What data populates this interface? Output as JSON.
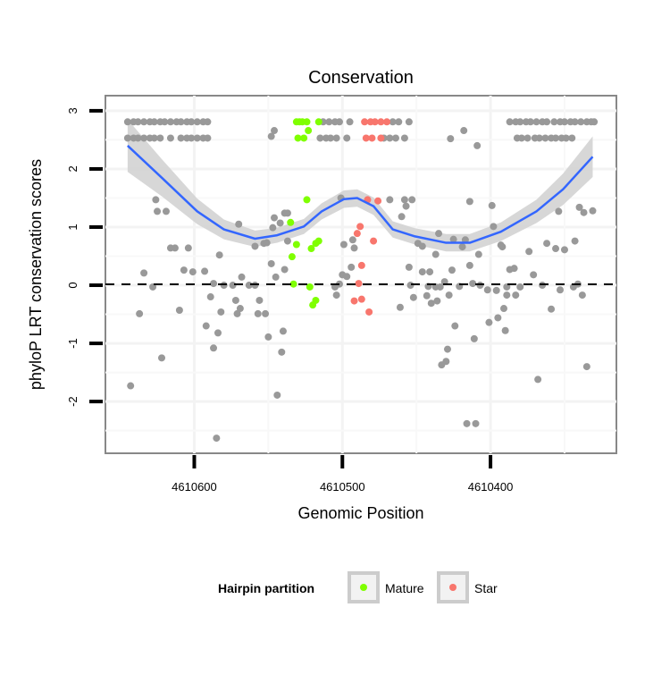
{
  "chart_data": {
    "type": "scatter",
    "title": "Conservation",
    "xlabel": "Genomic Position",
    "ylabel": "phyloP LRT conservation scores",
    "xlim": [
      4610660,
      4610315
    ],
    "x_reversed": true,
    "ylim": [
      -2.89,
      3.26
    ],
    "x_ticks": [
      4610600,
      4610500,
      4610400
    ],
    "x_tick_labels": [
      "4610600",
      "4610500",
      "4610400"
    ],
    "y_ticks": [
      3,
      2,
      1,
      0,
      -1,
      -2
    ],
    "y_tick_labels": [
      "3",
      "2",
      "1",
      "0",
      "-1",
      "-2"
    ],
    "grid": true,
    "reference_line": {
      "y": 0,
      "style": "dashed"
    },
    "legend": {
      "title": "Hairpin partition",
      "placement": "bottom",
      "entries": [
        {
          "label": "Mature",
          "color": "#7FFF00"
        },
        {
          "label": "Star",
          "color": "#F8766D"
        }
      ]
    },
    "colors": {
      "other": "#999999",
      "Mature": "#7FFF00",
      "Star": "#F8766D",
      "smooth": "#3366FF",
      "band": "#D3D3D3"
    },
    "series": [
      {
        "name": "Other",
        "points": [
          [
            4610645,
            2.81
          ],
          [
            4610641,
            2.81
          ],
          [
            4610638,
            2.81
          ],
          [
            4610634,
            2.81
          ],
          [
            4610630,
            2.81
          ],
          [
            4610627,
            2.81
          ],
          [
            4610623,
            2.81
          ],
          [
            4610620,
            2.81
          ],
          [
            4610616,
            2.81
          ],
          [
            4610612,
            2.81
          ],
          [
            4610609,
            2.81
          ],
          [
            4610605,
            2.81
          ],
          [
            4610602,
            2.81
          ],
          [
            4610598,
            2.81
          ],
          [
            4610594,
            2.81
          ],
          [
            4610591,
            2.81
          ],
          [
            4610645,
            2.53
          ],
          [
            4610641,
            2.53
          ],
          [
            4610638,
            2.53
          ],
          [
            4610634,
            2.53
          ],
          [
            4610630,
            2.53
          ],
          [
            4610627,
            2.53
          ],
          [
            4610623,
            2.53
          ],
          [
            4610616,
            2.53
          ],
          [
            4610609,
            2.53
          ],
          [
            4610605,
            2.53
          ],
          [
            4610602,
            2.53
          ],
          [
            4610598,
            2.53
          ],
          [
            4610594,
            2.53
          ],
          [
            4610591,
            2.53
          ],
          [
            4610513,
            2.81
          ],
          [
            4610509,
            2.81
          ],
          [
            4610505,
            2.81
          ],
          [
            4610502,
            2.81
          ],
          [
            4610495,
            2.81
          ],
          [
            4610515,
            2.53
          ],
          [
            4610511,
            2.53
          ],
          [
            4610508,
            2.53
          ],
          [
            4610504,
            2.53
          ],
          [
            4610497,
            2.53
          ],
          [
            4610466,
            2.81
          ],
          [
            4610462,
            2.81
          ],
          [
            4610455,
            2.81
          ],
          [
            4610472,
            2.53
          ],
          [
            4610468,
            2.53
          ],
          [
            4610464,
            2.53
          ],
          [
            4610458,
            2.53
          ],
          [
            4610387,
            2.81
          ],
          [
            4610383,
            2.81
          ],
          [
            4610380,
            2.81
          ],
          [
            4610376,
            2.81
          ],
          [
            4610373,
            2.81
          ],
          [
            4610369,
            2.81
          ],
          [
            4610365,
            2.81
          ],
          [
            4610362,
            2.81
          ],
          [
            4610357,
            2.81
          ],
          [
            4610353,
            2.81
          ],
          [
            4610350,
            2.81
          ],
          [
            4610346,
            2.81
          ],
          [
            4610343,
            2.81
          ],
          [
            4610339,
            2.81
          ],
          [
            4610335,
            2.81
          ],
          [
            4610332,
            2.81
          ],
          [
            4610330,
            2.81
          ],
          [
            4610382,
            2.53
          ],
          [
            4610379,
            2.53
          ],
          [
            4610375,
            2.53
          ],
          [
            4610370,
            2.53
          ],
          [
            4610367,
            2.53
          ],
          [
            4610363,
            2.53
          ],
          [
            4610359,
            2.53
          ],
          [
            4610356,
            2.53
          ],
          [
            4610352,
            2.53
          ],
          [
            4610349,
            2.53
          ],
          [
            4610345,
            2.53
          ],
          [
            4610546,
            2.66
          ],
          [
            4610548,
            2.56
          ],
          [
            4610427,
            2.52
          ],
          [
            4610418,
            2.66
          ],
          [
            4610409,
            2.4
          ],
          [
            4610626,
            1.47
          ],
          [
            4610625,
            1.27
          ],
          [
            4610619,
            1.27
          ],
          [
            4610570,
            1.05
          ],
          [
            4610546,
            1.16
          ],
          [
            4610547,
            0.99
          ],
          [
            4610542,
            1.07
          ],
          [
            4610537,
            1.24
          ],
          [
            4610539,
            1.24
          ],
          [
            4610559,
            0.67
          ],
          [
            4610553,
            0.72
          ],
          [
            4610551,
            0.73
          ],
          [
            4610537,
            0.76
          ],
          [
            4610616,
            0.64
          ],
          [
            4610613,
            0.64
          ],
          [
            4610604,
            0.64
          ],
          [
            4610583,
            0.52
          ],
          [
            4610548,
            0.37
          ],
          [
            4610539,
            0.27
          ],
          [
            4610545,
            0.14
          ],
          [
            4610634,
            0.21
          ],
          [
            4610607,
            0.26
          ],
          [
            4610601,
            0.23
          ],
          [
            4610593,
            0.24
          ],
          [
            4610628,
            -0.03
          ],
          [
            4610587,
            0.03
          ],
          [
            4610580,
            0
          ],
          [
            4610574,
            0
          ],
          [
            4610568,
            0.14
          ],
          [
            4610563,
            0
          ],
          [
            4610559,
            0
          ],
          [
            4610589,
            -0.2
          ],
          [
            4610572,
            -0.26
          ],
          [
            4610556,
            -0.26
          ],
          [
            4610569,
            -0.4
          ],
          [
            4610571,
            -0.49
          ],
          [
            4610582,
            -0.46
          ],
          [
            4610610,
            -0.43
          ],
          [
            4610637,
            -0.49
          ],
          [
            4610557,
            -0.49
          ],
          [
            4610552,
            -0.49
          ],
          [
            4610592,
            -0.7
          ],
          [
            4610584,
            -0.82
          ],
          [
            4610587,
            -1.08
          ],
          [
            4610622,
            -1.25
          ],
          [
            4610550,
            -0.89
          ],
          [
            4610540,
            -0.79
          ],
          [
            4610541,
            -1.15
          ],
          [
            4610643,
            -1.73
          ],
          [
            4610544,
            -1.89
          ],
          [
            4610585,
            -2.63
          ],
          [
            4610501,
            1.5
          ],
          [
            4610499,
            0.7
          ],
          [
            4610493,
            0.78
          ],
          [
            4610492,
            0.64
          ],
          [
            4610494,
            0.31
          ],
          [
            4610500,
            0.18
          ],
          [
            4610497,
            0.15
          ],
          [
            4610502,
            0.02
          ],
          [
            4610505,
            -0.03
          ],
          [
            4610504,
            -0.17
          ],
          [
            4610468,
            1.47
          ],
          [
            4610458,
            1.47
          ],
          [
            4610453,
            1.47
          ],
          [
            4610457,
            1.36
          ],
          [
            4610460,
            1.18
          ],
          [
            4610414,
            1.44
          ],
          [
            4610399,
            1.37
          ],
          [
            4610398,
            1.01
          ],
          [
            4610354,
            1.27
          ],
          [
            4610340,
            1.34
          ],
          [
            4610337,
            1.25
          ],
          [
            4610331,
            1.28
          ],
          [
            4610435,
            0.89
          ],
          [
            4610449,
            0.72
          ],
          [
            4610446,
            0.67
          ],
          [
            4610425,
            0.79
          ],
          [
            4610419,
            0.66
          ],
          [
            4610417,
            0.78
          ],
          [
            4610437,
            0.53
          ],
          [
            4610408,
            0.53
          ],
          [
            4610393,
            0.69
          ],
          [
            4610392,
            0.66
          ],
          [
            4610374,
            0.58
          ],
          [
            4610362,
            0.72
          ],
          [
            4610356,
            0.63
          ],
          [
            4610350,
            0.61
          ],
          [
            4610343,
            0.76
          ],
          [
            4610455,
            0.31
          ],
          [
            4610446,
            0.23
          ],
          [
            4610441,
            0.23
          ],
          [
            4610426,
            0.26
          ],
          [
            4610414,
            0.34
          ],
          [
            4610387,
            0.27
          ],
          [
            4610384,
            0.29
          ],
          [
            4610371,
            0.18
          ],
          [
            4610454,
            0
          ],
          [
            4610442,
            -0.02
          ],
          [
            4610437,
            -0.03
          ],
          [
            4610431,
            0.06
          ],
          [
            4610434,
            -0.03
          ],
          [
            4610421,
            -0.02
          ],
          [
            4610412,
            0.03
          ],
          [
            4610407,
            0
          ],
          [
            4610402,
            -0.08
          ],
          [
            4610396,
            -0.09
          ],
          [
            4610389,
            -0.03
          ],
          [
            4610389,
            -0.17
          ],
          [
            4610383,
            -0.17
          ],
          [
            4610380,
            -0.03
          ],
          [
            4610365,
            0
          ],
          [
            4610353,
            -0.08
          ],
          [
            4610344,
            -0.03
          ],
          [
            4610341,
            0.02
          ],
          [
            4610338,
            -0.17
          ],
          [
            4610452,
            -0.21
          ],
          [
            4610443,
            -0.18
          ],
          [
            4610440,
            -0.31
          ],
          [
            4610436,
            -0.27
          ],
          [
            4610428,
            -0.17
          ],
          [
            4610461,
            -0.38
          ],
          [
            4610391,
            -0.4
          ],
          [
            4610395,
            -0.56
          ],
          [
            4610401,
            -0.64
          ],
          [
            4610390,
            -0.78
          ],
          [
            4610424,
            -0.7
          ],
          [
            4610411,
            -0.92
          ],
          [
            4610359,
            -0.41
          ],
          [
            4610429,
            -1.1
          ],
          [
            4610430,
            -1.31
          ],
          [
            4610433,
            -1.37
          ],
          [
            4610368,
            -1.62
          ],
          [
            4610335,
            -1.4
          ],
          [
            4610416,
            -2.38
          ],
          [
            4610410,
            -2.38
          ]
        ]
      },
      {
        "name": "Mature",
        "points": [
          [
            4610531,
            2.81
          ],
          [
            4610529,
            2.81
          ],
          [
            4610527,
            2.81
          ],
          [
            4610524,
            2.81
          ],
          [
            4610516,
            2.81
          ],
          [
            4610530,
            2.53
          ],
          [
            4610526,
            2.53
          ],
          [
            4610523,
            2.66
          ],
          [
            4610524,
            1.47
          ],
          [
            4610535,
            1.08
          ],
          [
            4610531,
            0.7
          ],
          [
            4610521,
            0.63
          ],
          [
            4610518,
            0.72
          ],
          [
            4610516,
            0.76
          ],
          [
            4610534,
            0.49
          ],
          [
            4610533,
            0.02
          ],
          [
            4610522,
            -0.03
          ],
          [
            4610518,
            -0.26
          ],
          [
            4610520,
            -0.34
          ]
        ]
      },
      {
        "name": "Star",
        "points": [
          [
            4610485,
            2.81
          ],
          [
            4610481,
            2.81
          ],
          [
            4610478,
            2.81
          ],
          [
            4610474,
            2.81
          ],
          [
            4610470,
            2.81
          ],
          [
            4610484,
            2.53
          ],
          [
            4610480,
            2.53
          ],
          [
            4610474,
            2.53
          ],
          [
            4610488,
            1.01
          ],
          [
            4610490,
            0.89
          ],
          [
            4610487,
            0.34
          ],
          [
            4610489,
            0.03
          ],
          [
            4610492,
            -0.27
          ],
          [
            4610487,
            -0.24
          ],
          [
            4610483,
            1.47
          ],
          [
            4610476,
            1.45
          ],
          [
            4610479,
            0.76
          ],
          [
            4610482,
            -0.46
          ]
        ]
      }
    ],
    "smooth": {
      "x": [
        4610645,
        4610622,
        4610598,
        4610580,
        4610559,
        4610544,
        4610526,
        4610514,
        4610499,
        4610490,
        4610479,
        4610466,
        4610451,
        4610430,
        4610414,
        4610393,
        4610369,
        4610351,
        4610331
      ],
      "y": [
        2.4,
        1.85,
        1.27,
        0.96,
        0.8,
        0.86,
        1.01,
        1.27,
        1.48,
        1.5,
        1.36,
        0.96,
        0.84,
        0.73,
        0.73,
        0.92,
        1.27,
        1.65,
        2.21
      ],
      "se": [
        0.45,
        0.32,
        0.22,
        0.17,
        0.14,
        0.13,
        0.13,
        0.14,
        0.15,
        0.15,
        0.15,
        0.14,
        0.14,
        0.15,
        0.15,
        0.16,
        0.2,
        0.27,
        0.35
      ]
    }
  }
}
